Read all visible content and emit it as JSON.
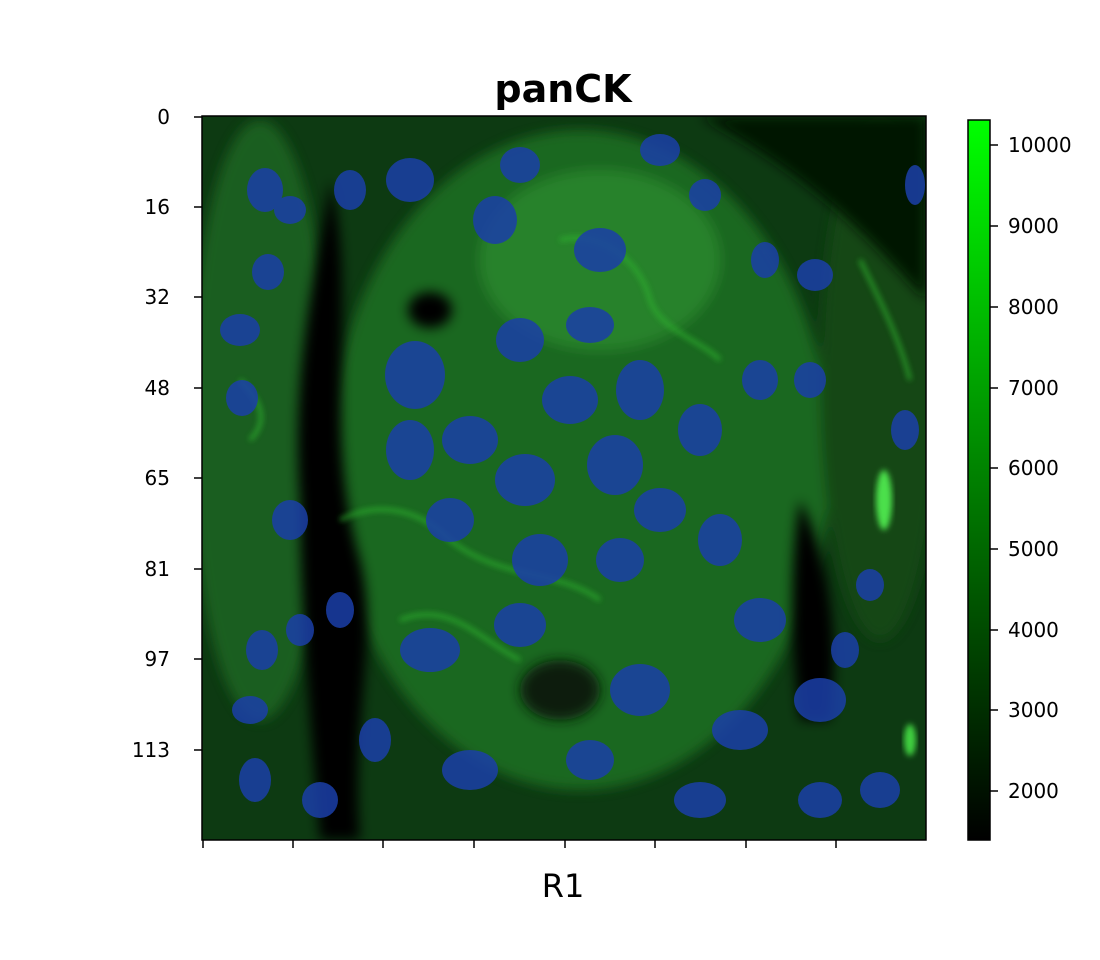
{
  "figure": {
    "title": "panCK",
    "xlabel": "R1",
    "y_ticks": [
      "0",
      "16",
      "32",
      "48",
      "65",
      "81",
      "97",
      "113"
    ],
    "x_tick_count": 8,
    "colorbar": {
      "ticks": [
        "10000",
        "9000",
        "8000",
        "7000",
        "6000",
        "5000",
        "4000",
        "3000",
        "2000"
      ],
      "range": [
        1400,
        10300
      ],
      "color_low": "#000000",
      "color_high": "#00ff00"
    },
    "image": {
      "description_colors": {
        "background": "#000000",
        "cytokeratin": "#1e8a1e",
        "nuclei": "#1a3cb4"
      }
    }
  }
}
